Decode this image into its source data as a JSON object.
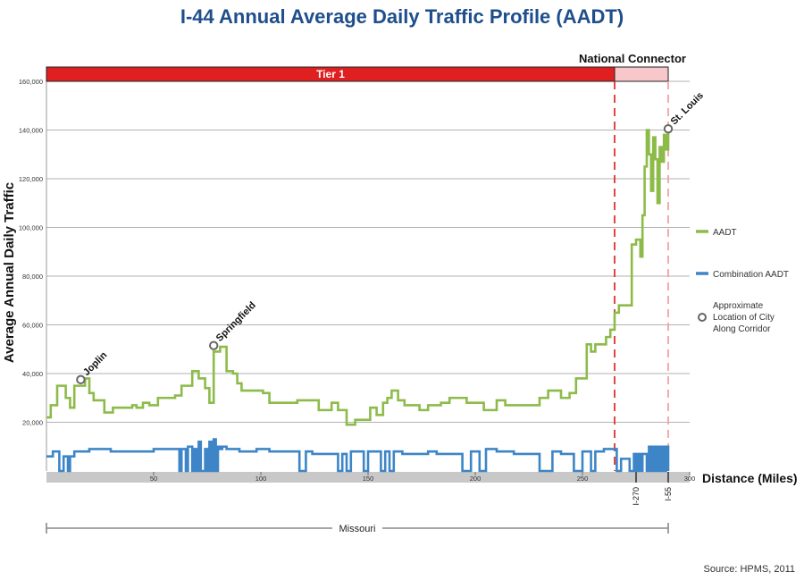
{
  "title": "I-44 Annual Average Daily Traffic Profile (AADT)",
  "source": "Source: HPMS, 2011",
  "tiers": [
    {
      "label": "Tier 1",
      "from_mile": 0,
      "to_mile": 265,
      "color": "#e02020"
    },
    {
      "label": "National Connector",
      "from_mile": 265,
      "to_mile": 290,
      "color": "#f7c7ca"
    }
  ],
  "state_band": {
    "label": "Missouri",
    "from_mile": 0,
    "to_mile": 290
  },
  "junctions": [
    {
      "label": "I-270",
      "mile": 275
    },
    {
      "label": "I-55",
      "mile": 290
    }
  ],
  "dashed_markers": [
    {
      "mile": 265,
      "color": "#e03030"
    },
    {
      "mile": 290,
      "color": "#f4a0a6"
    }
  ],
  "cities": [
    {
      "label": "Joplin",
      "mile": 16,
      "value": 37500
    },
    {
      "label": "Springfield",
      "mile": 78,
      "value": 51500
    },
    {
      "label": "St. Louis",
      "mile": 290,
      "value": 140500
    }
  ],
  "legend": [
    {
      "label": "AADT",
      "kind": "line",
      "color": "#8dbb4a"
    },
    {
      "label": "Combination AADT",
      "kind": "line",
      "color": "#3d85c6"
    },
    {
      "label": "Approximate Location of City Along Corridor",
      "kind": "circle",
      "color": "#666666"
    }
  ],
  "chart_data": {
    "type": "line",
    "title": "I-44 Annual Average Daily Traffic Profile (AADT)",
    "xlabel": "Distance (Miles)",
    "ylabel": "Average Annual Daily Traffic",
    "xlim": [
      0,
      300
    ],
    "ylim": [
      0,
      160000
    ],
    "x_ticks": [
      50,
      100,
      150,
      200,
      250,
      300
    ],
    "y_ticks": [
      20000,
      40000,
      60000,
      80000,
      100000,
      120000,
      140000,
      160000
    ],
    "y_tick_labels": [
      "20,000",
      "40,000",
      "60,000",
      "80,000",
      "100,000",
      "120,000",
      "140,000",
      "160,000"
    ],
    "grid": true,
    "legend_position": "right",
    "series": [
      {
        "name": "AADT",
        "color": "#8dbb4a",
        "x": [
          0,
          2,
          4,
          5,
          7,
          9,
          11,
          13,
          14,
          16,
          18,
          20,
          22,
          25,
          27,
          29,
          31,
          33,
          35,
          37,
          40,
          42,
          45,
          48,
          50,
          52,
          55,
          57,
          60,
          63,
          66,
          68,
          71,
          74,
          76,
          77,
          78,
          79,
          81,
          82,
          84,
          87,
          89,
          91,
          93,
          95,
          97,
          99,
          101,
          104,
          106,
          110,
          113,
          117,
          121,
          124,
          127,
          130,
          133,
          136,
          140,
          144,
          147,
          151,
          154,
          157,
          159,
          161,
          164,
          167,
          170,
          174,
          178,
          181,
          184,
          188,
          192,
          196,
          200,
          204,
          207,
          210,
          214,
          218,
          222,
          226,
          230,
          234,
          237,
          240,
          244,
          247,
          250,
          252,
          254,
          256,
          258,
          261,
          263,
          265,
          266,
          267,
          268,
          269,
          271,
          273,
          274,
          275,
          276,
          277,
          278,
          279,
          280,
          281,
          282,
          283,
          284,
          285,
          286,
          287,
          288,
          289,
          290
        ],
        "y": [
          22000,
          27000,
          27000,
          35000,
          35000,
          30000,
          26000,
          35000,
          35000,
          35000,
          38000,
          32000,
          29000,
          29000,
          24000,
          24000,
          26000,
          26000,
          26000,
          26000,
          27000,
          26000,
          28000,
          27000,
          27000,
          30000,
          30000,
          30000,
          31000,
          35000,
          35000,
          41000,
          38000,
          34000,
          28000,
          28000,
          49000,
          49000,
          51000,
          51000,
          41000,
          40000,
          36000,
          33000,
          33000,
          33000,
          33000,
          33000,
          32000,
          28000,
          28000,
          28000,
          28000,
          29000,
          29000,
          29000,
          25000,
          25000,
          28000,
          25000,
          19000,
          21000,
          21000,
          26000,
          23000,
          28000,
          30000,
          33000,
          29000,
          27000,
          27000,
          25000,
          27000,
          27000,
          28000,
          30000,
          30000,
          28000,
          28000,
          25000,
          25000,
          29000,
          27000,
          27000,
          27000,
          27000,
          30000,
          33000,
          33000,
          30000,
          32000,
          38000,
          38000,
          52000,
          49000,
          52000,
          52000,
          55000,
          58000,
          65000,
          65000,
          68000,
          68000,
          68000,
          68000,
          93000,
          93000,
          95000,
          95000,
          88000,
          105000,
          125000,
          140000,
          130000,
          115000,
          137000,
          128000,
          110000,
          133000,
          127000,
          138000,
          132000,
          140000
        ]
      },
      {
        "name": "Combination AADT",
        "color": "#3d85c6",
        "x": [
          0,
          3,
          5,
          6,
          8,
          10,
          11,
          13,
          16,
          20,
          24,
          28,
          30,
          34,
          40,
          46,
          50,
          52,
          54,
          57,
          60,
          62,
          63,
          65,
          66,
          68,
          69,
          70,
          71,
          72,
          74,
          75,
          76,
          77,
          78,
          79,
          80,
          81,
          82,
          84,
          86,
          88,
          90,
          92,
          94,
          96,
          98,
          100,
          104,
          108,
          110,
          113,
          117,
          118,
          121,
          124,
          126,
          128,
          130,
          133,
          136,
          138,
          140,
          142,
          144,
          146,
          148,
          150,
          152,
          154,
          156,
          158,
          160,
          162,
          166,
          170,
          174,
          178,
          182,
          186,
          190,
          194,
          198,
          202,
          205,
          210,
          214,
          218,
          220,
          224,
          230,
          236,
          240,
          246,
          250,
          254,
          256,
          258,
          260,
          262,
          264,
          266,
          268,
          270,
          272,
          274,
          275,
          276,
          277,
          278,
          279,
          280,
          281,
          282,
          283,
          284,
          285,
          286,
          287,
          288,
          289,
          290
        ],
        "y": [
          6000,
          8000,
          8000,
          0,
          6000,
          0,
          6000,
          8000,
          8000,
          9000,
          9000,
          9000,
          8000,
          8000,
          8000,
          8000,
          9000,
          9000,
          9000,
          9000,
          9000,
          0,
          9000,
          0,
          10000,
          0,
          9000,
          0,
          12000,
          0,
          9000,
          0,
          12000,
          0,
          13000,
          0,
          10000,
          9000,
          10000,
          9000,
          9000,
          9000,
          8000,
          8000,
          8000,
          8000,
          9000,
          9000,
          8000,
          8000,
          8000,
          8000,
          8000,
          0,
          8000,
          7000,
          7000,
          7000,
          7000,
          7000,
          0,
          7000,
          0,
          8000,
          8000,
          8000,
          0,
          8000,
          8000,
          8000,
          0,
          8000,
          0,
          8000,
          7000,
          7000,
          7000,
          8000,
          7000,
          7000,
          7000,
          0,
          8000,
          0,
          9000,
          8000,
          8000,
          7000,
          7000,
          7000,
          0,
          8000,
          7000,
          0,
          8000,
          0,
          8000,
          8000,
          9000,
          9000,
          9000,
          0,
          5000,
          5000,
          0,
          7000,
          0,
          7000,
          0,
          7000,
          7000,
          0,
          10000,
          0,
          10000,
          0,
          10000,
          0,
          10000,
          0,
          10000,
          0
        ]
      }
    ]
  }
}
